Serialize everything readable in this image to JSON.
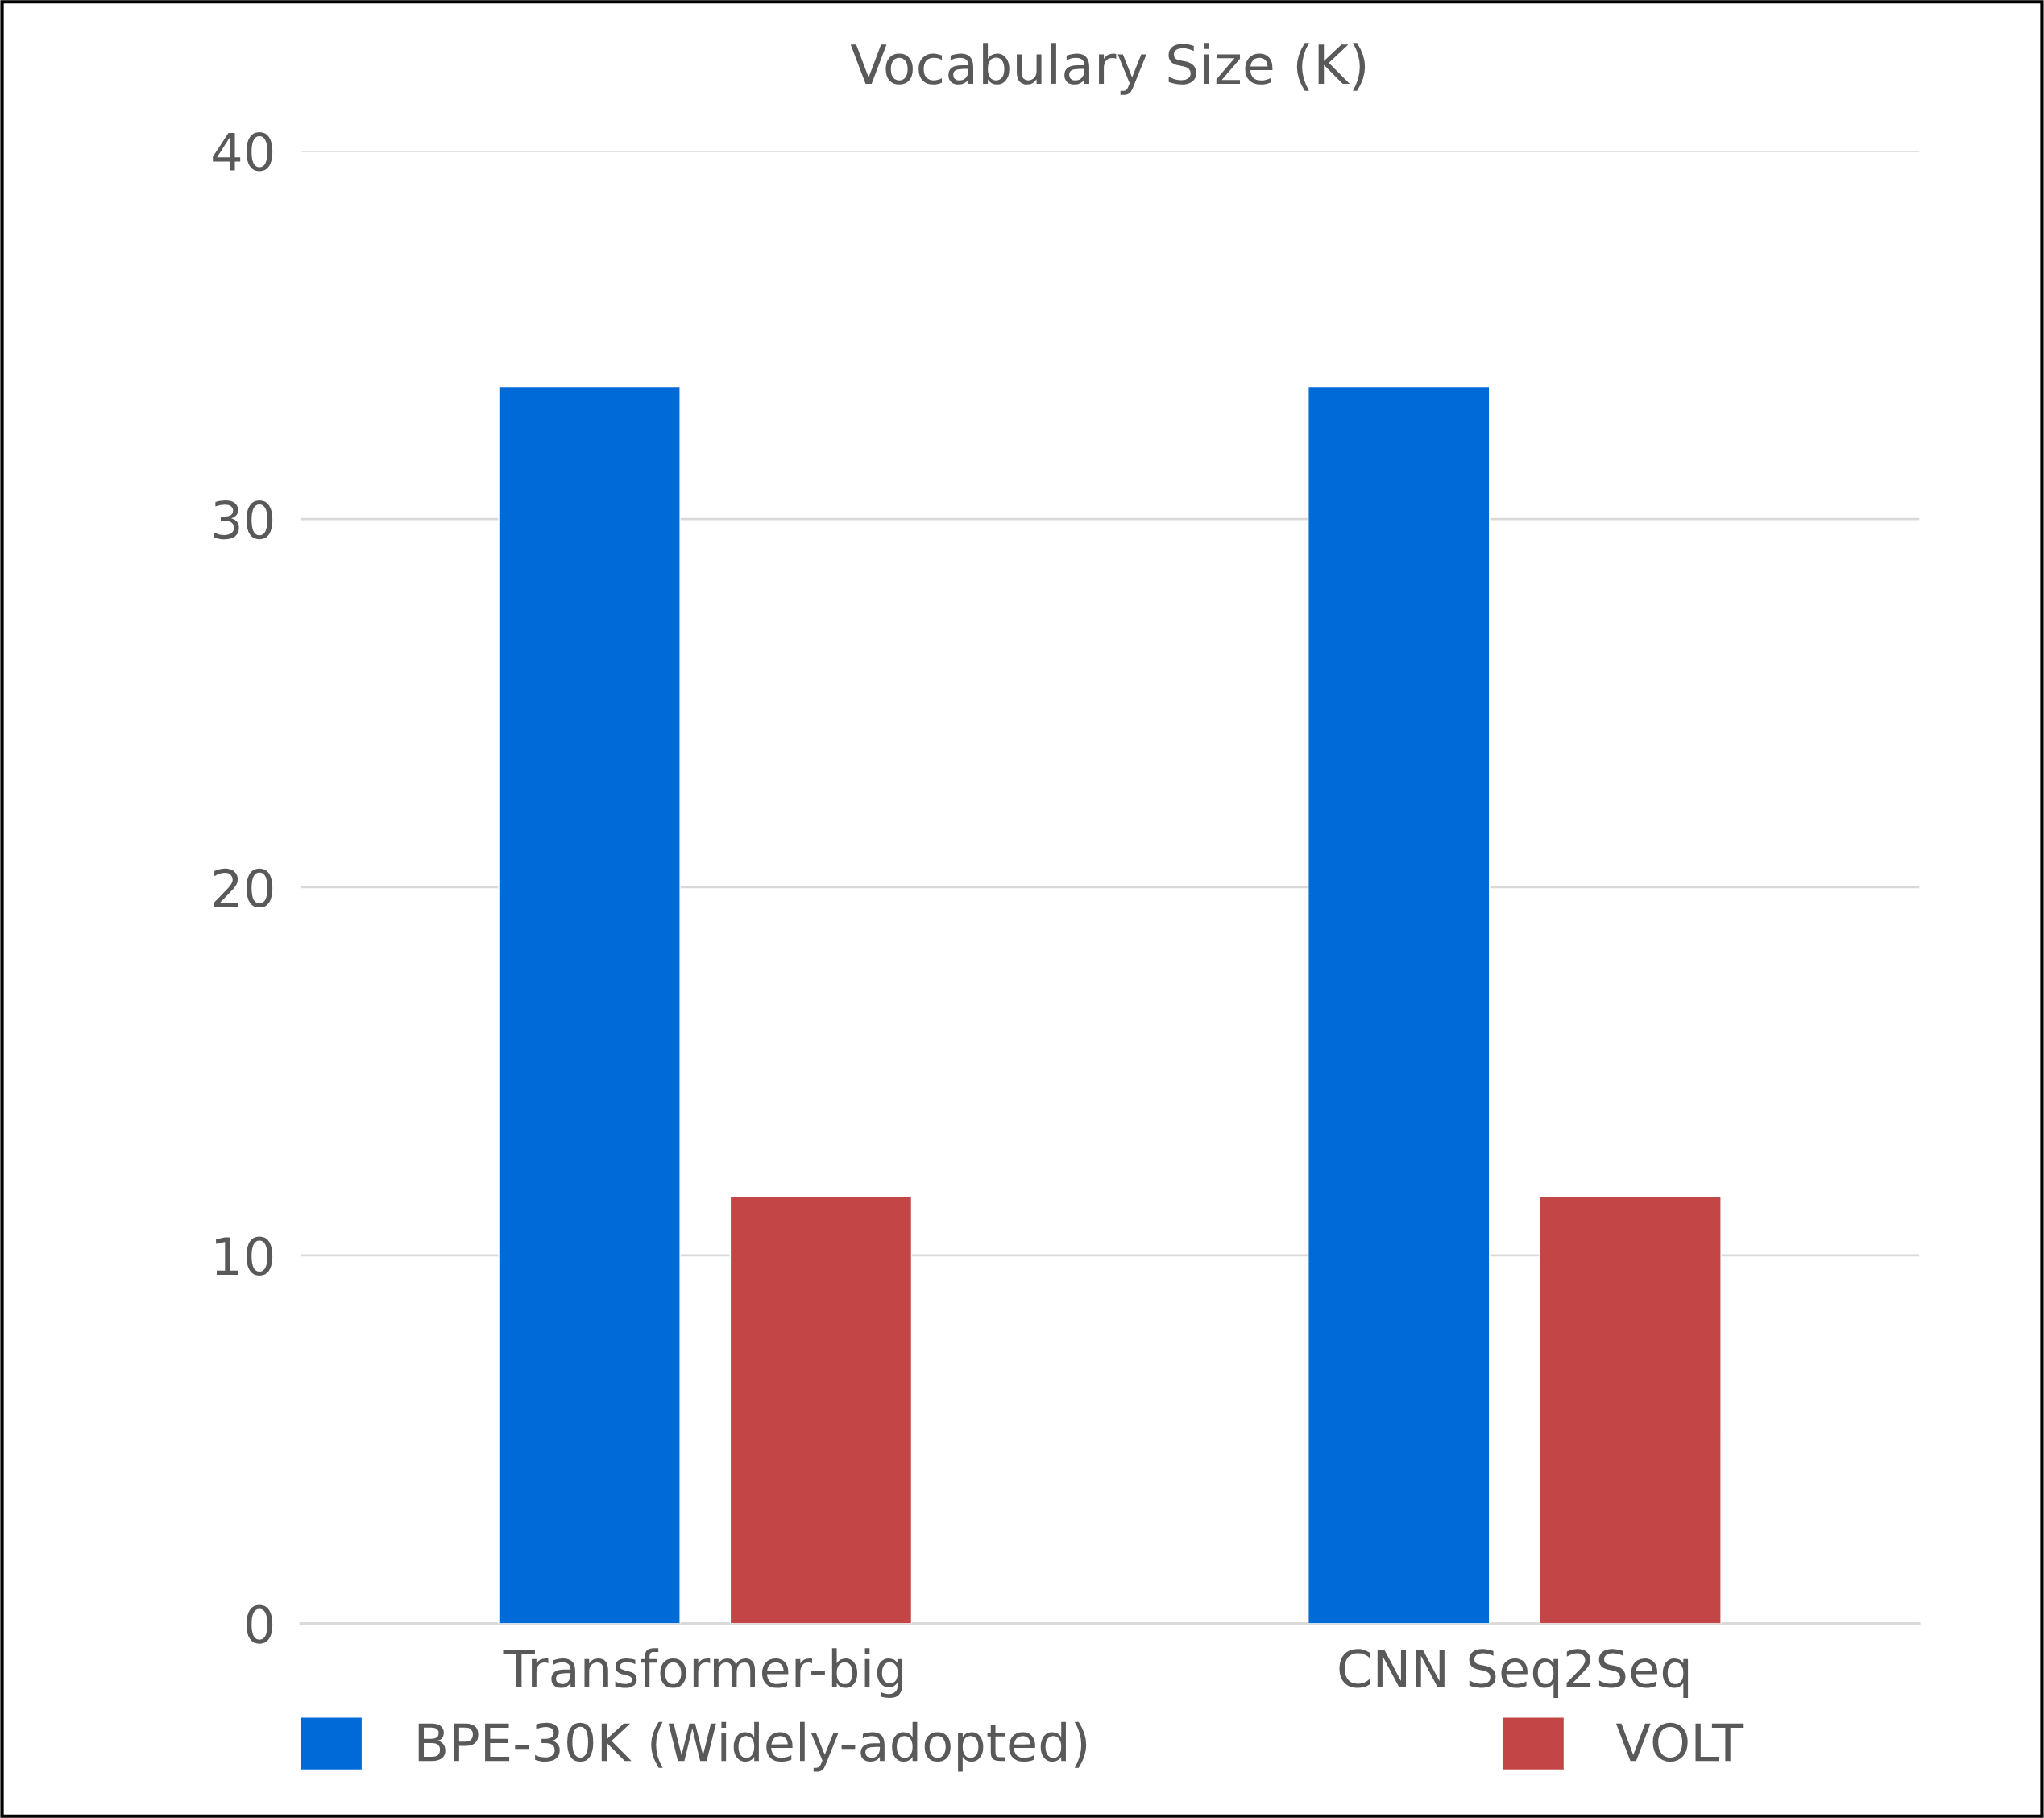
{
  "chart_data": {
    "type": "bar",
    "title": "Vocabulary Size (K)",
    "categories": [
      "Transformer-big",
      "CNN Seq2Seq"
    ],
    "series": [
      {
        "name": "BPE-30K (Widely-adopted)",
        "color": "#006ad9",
        "values": [
          33.6,
          33.6
        ]
      },
      {
        "name": "VOLT",
        "color": "#c44545",
        "values": [
          11.6,
          11.6
        ]
      }
    ],
    "ylim": [
      0,
      40
    ],
    "yticks": [
      0,
      10,
      20,
      30,
      40
    ],
    "grid": "y",
    "legend": "bottom"
  }
}
